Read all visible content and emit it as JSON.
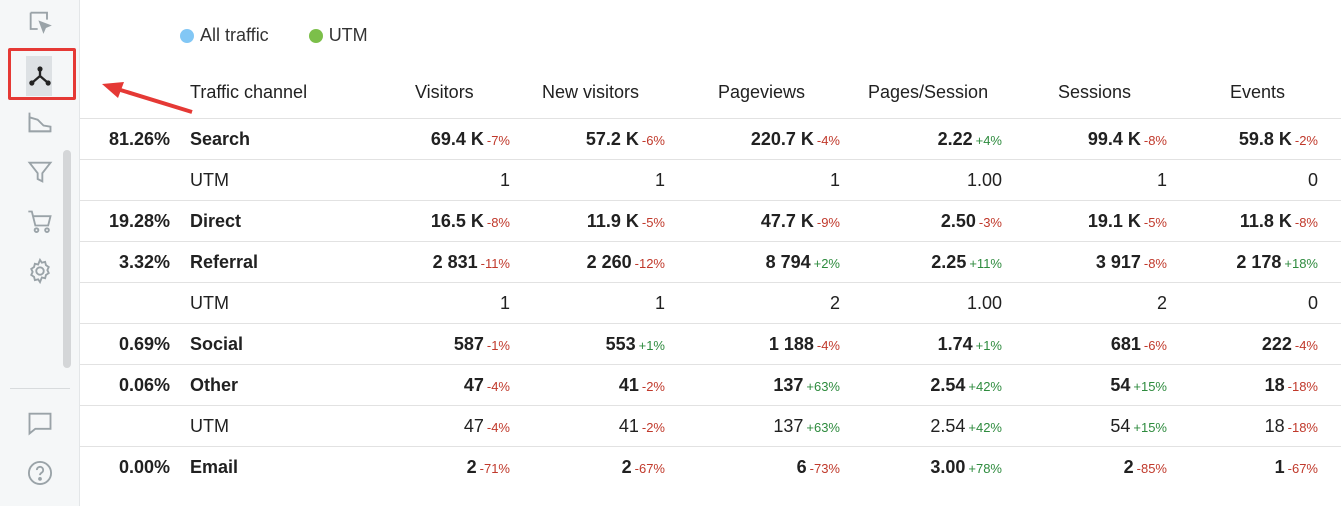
{
  "sidebar": {
    "items": [
      {
        "name": "select-cursor-icon"
      },
      {
        "name": "traffic-channels-icon"
      },
      {
        "name": "area-chart-icon"
      },
      {
        "name": "funnel-icon"
      },
      {
        "name": "cart-icon"
      },
      {
        "name": "settings-gear-icon"
      },
      {
        "name": "chat-icon"
      },
      {
        "name": "help-icon"
      }
    ]
  },
  "legend": [
    {
      "label": "All traffic",
      "color": "#82c7f5"
    },
    {
      "label": "UTM",
      "color": "#7cbf4a"
    }
  ],
  "columns": [
    "Traffic channel",
    "Visitors",
    "New visitors",
    "Pageviews",
    "Pages/Session",
    "Sessions",
    "Events"
  ],
  "rows": [
    {
      "pct": "81.26%",
      "channel": "Search",
      "bold": true,
      "cells": [
        [
          "69.4 K",
          "-7%"
        ],
        [
          "57.2 K",
          "-6%"
        ],
        [
          "220.7 K",
          "-4%"
        ],
        [
          "2.22",
          "+4%"
        ],
        [
          "99.4 K",
          "-8%"
        ],
        [
          "59.8 K",
          "-2%"
        ]
      ]
    },
    {
      "pct": "",
      "channel": "UTM",
      "bold": false,
      "cells": [
        [
          "1",
          ""
        ],
        [
          "1",
          ""
        ],
        [
          "1",
          ""
        ],
        [
          "1.00",
          ""
        ],
        [
          "1",
          ""
        ],
        [
          "0",
          ""
        ]
      ]
    },
    {
      "pct": "19.28%",
      "channel": "Direct",
      "bold": true,
      "cells": [
        [
          "16.5 K",
          "-8%"
        ],
        [
          "11.9 K",
          "-5%"
        ],
        [
          "47.7 K",
          "-9%"
        ],
        [
          "2.50",
          "-3%"
        ],
        [
          "19.1 K",
          "-5%"
        ],
        [
          "11.8 K",
          "-8%"
        ]
      ]
    },
    {
      "pct": "3.32%",
      "channel": "Referral",
      "bold": true,
      "cells": [
        [
          "2 831",
          "-11%"
        ],
        [
          "2 260",
          "-12%"
        ],
        [
          "8 794",
          "+2%"
        ],
        [
          "2.25",
          "+11%"
        ],
        [
          "3 917",
          "-8%"
        ],
        [
          "2 178",
          "+18%"
        ]
      ]
    },
    {
      "pct": "",
      "channel": "UTM",
      "bold": false,
      "cells": [
        [
          "1",
          ""
        ],
        [
          "1",
          ""
        ],
        [
          "2",
          ""
        ],
        [
          "1.00",
          ""
        ],
        [
          "2",
          ""
        ],
        [
          "0",
          ""
        ]
      ]
    },
    {
      "pct": "0.69%",
      "channel": "Social",
      "bold": true,
      "cells": [
        [
          "587",
          "-1%"
        ],
        [
          "553",
          "+1%"
        ],
        [
          "1 188",
          "-4%"
        ],
        [
          "1.74",
          "+1%"
        ],
        [
          "681",
          "-6%"
        ],
        [
          "222",
          "-4%"
        ]
      ]
    },
    {
      "pct": "0.06%",
      "channel": "Other",
      "bold": true,
      "cells": [
        [
          "47",
          "-4%"
        ],
        [
          "41",
          "-2%"
        ],
        [
          "137",
          "+63%"
        ],
        [
          "2.54",
          "+42%"
        ],
        [
          "54",
          "+15%"
        ],
        [
          "18",
          "-18%"
        ]
      ]
    },
    {
      "pct": "",
      "channel": "UTM",
      "bold": false,
      "cells": [
        [
          "47",
          "-4%"
        ],
        [
          "41",
          "-2%"
        ],
        [
          "137",
          "+63%"
        ],
        [
          "2.54",
          "+42%"
        ],
        [
          "54",
          "+15%"
        ],
        [
          "18",
          "-18%"
        ]
      ]
    },
    {
      "pct": "0.00%",
      "channel": "Email",
      "bold": true,
      "cells": [
        [
          "2",
          "-71%"
        ],
        [
          "2",
          "-67%"
        ],
        [
          "6",
          "-73%"
        ],
        [
          "3.00",
          "+78%"
        ],
        [
          "2",
          "-85%"
        ],
        [
          "1",
          "-67%"
        ]
      ]
    }
  ]
}
